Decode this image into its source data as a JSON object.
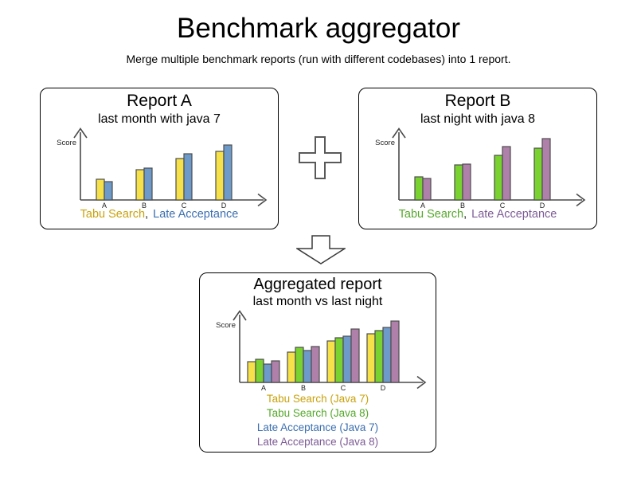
{
  "header": {
    "title": "Benchmark aggregator",
    "subtitle": "Merge multiple benchmark reports (run with different codebases) into 1 report."
  },
  "icons": {
    "plus": "plus",
    "merge_arrow": "arrow-down"
  },
  "legend_separator": ",",
  "colors": {
    "panel_border": "#000000",
    "axis": "#4a4a4a",
    "label": "#1f1f1f",
    "bar_outline": "#4d4d4d",
    "plus_outline": "#595959",
    "arrow_outline": "#3a3a3a"
  },
  "chart_data": [
    {
      "id": "report_a",
      "type": "bar",
      "title": "Report A",
      "subtitle": "last month with java 7",
      "ylabel": "Score",
      "ylim": [
        0,
        100
      ],
      "grid": false,
      "legend_position": "below",
      "categories": [
        "A",
        "B",
        "C",
        "D"
      ],
      "series": [
        {
          "name": "Tabu Search (Java 7)",
          "legend_label": "Tabu Search",
          "color": "#f6e14b",
          "text_color": "#c9a20b",
          "values": [
            33,
            48,
            65,
            76
          ]
        },
        {
          "name": "Late Acceptance (Java 7)",
          "legend_label": "Late Acceptance",
          "color": "#6d9ac9",
          "text_color": "#3a6fb0",
          "values": [
            29,
            50,
            73,
            86
          ]
        }
      ]
    },
    {
      "id": "report_b",
      "type": "bar",
      "title": "Report B",
      "subtitle": "last night with java 8",
      "ylabel": "Score",
      "ylim": [
        0,
        100
      ],
      "grid": false,
      "legend_position": "below",
      "categories": [
        "A",
        "B",
        "C",
        "D"
      ],
      "series": [
        {
          "name": "Tabu Search (Java 8)",
          "legend_label": "Tabu Search",
          "color": "#79d22f",
          "text_color": "#55a82a",
          "values": [
            36,
            55,
            70,
            81
          ]
        },
        {
          "name": "Late Acceptance (Java 8)",
          "legend_label": "Late Acceptance",
          "color": "#af81aa",
          "text_color": "#7d5c96",
          "values": [
            34,
            56,
            84,
            96
          ]
        }
      ]
    },
    {
      "id": "aggregated",
      "type": "bar",
      "title": "Aggregated report",
      "subtitle": "last month vs last night",
      "ylabel": "Score",
      "ylim": [
        0,
        100
      ],
      "grid": false,
      "legend_position": "below",
      "categories": [
        "A",
        "B",
        "C",
        "D"
      ],
      "series": [
        {
          "name": "Tabu Search (Java 7)",
          "legend_label": "Tabu Search (Java 7)",
          "color": "#f6e14b",
          "text_color": "#c9a20b",
          "values": [
            33,
            48,
            65,
            76
          ]
        },
        {
          "name": "Tabu Search (Java 8)",
          "legend_label": "Tabu Search (Java 8)",
          "color": "#79d22f",
          "text_color": "#55a82a",
          "values": [
            36,
            55,
            70,
            81
          ]
        },
        {
          "name": "Late Acceptance (Java 7)",
          "legend_label": "Late Acceptance (Java 7)",
          "color": "#6d9ac9",
          "text_color": "#3a6fb0",
          "values": [
            29,
            50,
            73,
            86
          ]
        },
        {
          "name": "Late Acceptance (Java 8)",
          "legend_label": "Late Acceptance (Java 8)",
          "color": "#af81aa",
          "text_color": "#7d5c96",
          "values": [
            34,
            56,
            84,
            96
          ]
        }
      ]
    }
  ]
}
